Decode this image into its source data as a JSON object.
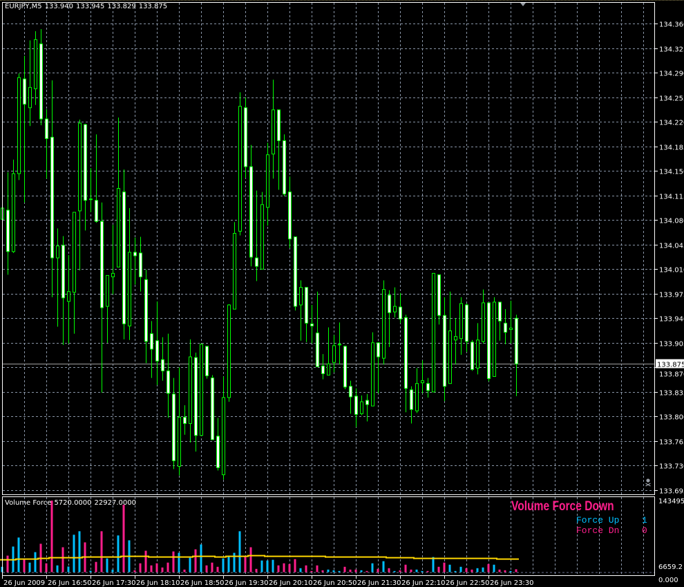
{
  "header": {
    "symbol": "EURJPY,M5",
    "open": "133.940",
    "high": "133.945",
    "low": "133.829",
    "close": "133.875"
  },
  "colors": {
    "background": "#000000",
    "grid": "#8a96a8",
    "candle_outline": "#00ff00",
    "bull_body": "#000000",
    "bear_body": "#ffffff",
    "force_up": "#00bfff",
    "force_down": "#ff1e8c",
    "average_line": "#ffd700",
    "frame": "#ffffff"
  },
  "price_axis": {
    "labels": [
      "134.360",
      "134.325",
      "134.290",
      "134.255",
      "134.220",
      "134.185",
      "134.150",
      "134.115",
      "134.080",
      "134.045",
      "134.010",
      "133.975",
      "133.940",
      "133.905",
      "133.870",
      "133.835",
      "133.800",
      "133.765",
      "133.730",
      "133.695"
    ],
    "current_price": "133.875"
  },
  "time_axis": {
    "labels": [
      "26 Jun 2009",
      "26 Jun 16:50",
      "26 Jun 17:30",
      "26 Jun 18:10",
      "26 Jun 18:50",
      "26 Jun 19:30",
      "26 Jun 20:10",
      "26 Jun 20:50",
      "26 Jun 21:30",
      "26 Jun 22:10",
      "26 Jun 22:50",
      "26 Jun 23:30"
    ]
  },
  "candles_ohlc": [
    [
      134.081,
      134.114,
      134.012,
      134.097
    ],
    [
      134.094,
      134.148,
      134.002,
      134.035
    ],
    [
      134.035,
      134.166,
      134.033,
      134.146
    ],
    [
      134.146,
      134.289,
      134.137,
      134.283
    ],
    [
      134.281,
      134.314,
      134.105,
      134.245
    ],
    [
      134.24,
      134.336,
      134.214,
      134.269
    ],
    [
      134.267,
      134.349,
      134.244,
      134.337
    ],
    [
      134.331,
      134.352,
      134.215,
      134.224
    ],
    [
      134.224,
      134.238,
      134.139,
      134.196
    ],
    [
      134.198,
      134.279,
      133.97,
      134.026
    ],
    [
      134.026,
      134.068,
      133.928,
      134.043
    ],
    [
      134.044,
      134.057,
      133.902,
      133.969
    ],
    [
      133.964,
      134.03,
      133.904,
      133.978
    ],
    [
      133.977,
      134.091,
      133.918,
      134.091
    ],
    [
      134.093,
      134.223,
      134.008,
      134.218
    ],
    [
      134.216,
      134.217,
      134.065,
      134.108
    ],
    [
      134.11,
      134.154,
      134.091,
      134.11
    ],
    [
      134.108,
      134.202,
      134.076,
      134.078
    ],
    [
      134.078,
      134.105,
      133.834,
      133.955
    ],
    [
      133.957,
      134.001,
      133.905,
      134.001
    ],
    [
      133.999,
      134.073,
      133.974,
      134.004
    ],
    [
      134.013,
      134.226,
      134.013,
      134.125
    ],
    [
      134.12,
      134.152,
      133.91,
      133.932
    ],
    [
      133.929,
      134.097,
      133.909,
      134.034
    ],
    [
      134.034,
      134.055,
      133.988,
      134.029
    ],
    [
      134.033,
      134.056,
      133.978,
      133.999
    ],
    [
      133.995,
      134.009,
      133.876,
      133.907
    ],
    [
      133.918,
      133.936,
      133.855,
      133.896
    ],
    [
      133.908,
      133.964,
      133.845,
      133.879
    ],
    [
      133.881,
      133.913,
      133.851,
      133.865
    ],
    [
      133.865,
      133.918,
      133.798,
      133.833
    ],
    [
      133.832,
      133.855,
      133.725,
      133.737
    ],
    [
      133.729,
      133.87,
      133.716,
      133.799
    ],
    [
      133.799,
      133.816,
      133.774,
      133.79
    ],
    [
      133.79,
      133.91,
      133.763,
      133.885
    ],
    [
      133.884,
      133.891,
      133.75,
      133.773
    ],
    [
      133.773,
      133.903,
      133.773,
      133.903
    ],
    [
      133.9,
      133.9,
      133.854,
      133.858
    ],
    [
      133.855,
      133.859,
      133.767,
      133.767
    ],
    [
      133.772,
      133.798,
      133.723,
      133.727
    ],
    [
      133.717,
      133.857,
      133.71,
      133.827
    ],
    [
      133.827,
      133.96,
      133.821,
      133.959
    ],
    [
      133.953,
      134.077,
      133.953,
      134.061
    ],
    [
      134.064,
      134.262,
      134.058,
      134.242
    ],
    [
      134.24,
      134.255,
      134.14,
      134.156
    ],
    [
      134.156,
      134.187,
      134.014,
      134.027
    ],
    [
      134.026,
      134.122,
      133.993,
      134.014
    ],
    [
      134.01,
      134.12,
      134.01,
      134.102
    ],
    [
      134.098,
      134.19,
      134.072,
      134.173
    ],
    [
      134.174,
      134.28,
      134.139,
      134.237
    ],
    [
      134.237,
      134.237,
      134.123,
      134.193
    ],
    [
      134.193,
      134.202,
      134.114,
      134.117
    ],
    [
      134.12,
      134.142,
      134.04,
      134.053
    ],
    [
      134.056,
      134.056,
      133.951,
      133.957
    ],
    [
      133.959,
      133.994,
      133.908,
      133.984
    ],
    [
      133.984,
      133.984,
      133.906,
      133.933
    ],
    [
      133.932,
      133.959,
      133.904,
      133.929
    ],
    [
      133.919,
      133.978,
      133.871,
      133.871
    ],
    [
      133.872,
      133.889,
      133.853,
      133.861
    ],
    [
      133.859,
      133.927,
      133.859,
      133.875
    ],
    [
      133.877,
      133.916,
      133.863,
      133.901
    ],
    [
      133.903,
      133.934,
      133.874,
      133.902
    ],
    [
      133.9,
      133.901,
      133.839,
      133.842
    ],
    [
      133.843,
      133.851,
      133.804,
      133.828
    ],
    [
      133.829,
      133.84,
      133.785,
      133.803
    ],
    [
      133.804,
      133.83,
      133.802,
      133.821
    ],
    [
      133.823,
      133.832,
      133.793,
      133.817
    ],
    [
      133.815,
      133.92,
      133.815,
      133.905
    ],
    [
      133.905,
      133.906,
      133.833,
      133.885
    ],
    [
      133.883,
      133.994,
      133.874,
      133.981
    ],
    [
      133.973,
      133.98,
      133.899,
      133.948
    ],
    [
      133.949,
      133.984,
      133.941,
      133.957
    ],
    [
      133.956,
      133.976,
      133.933,
      133.939
    ],
    [
      133.941,
      133.945,
      133.806,
      133.84
    ],
    [
      133.838,
      133.843,
      133.79,
      133.81
    ],
    [
      133.808,
      133.869,
      133.805,
      133.847
    ],
    [
      133.848,
      133.88,
      133.833,
      133.851
    ],
    [
      133.847,
      133.855,
      133.827,
      133.837
    ],
    [
      133.835,
      134.004,
      133.835,
      134.004
    ],
    [
      134.002,
      134.002,
      133.931,
      133.944
    ],
    [
      133.944,
      133.97,
      133.822,
      133.843
    ],
    [
      133.847,
      133.978,
      133.847,
      133.922
    ],
    [
      133.909,
      133.94,
      133.874,
      133.914
    ],
    [
      133.911,
      133.97,
      133.888,
      133.961
    ],
    [
      133.959,
      133.961,
      133.892,
      133.907
    ],
    [
      133.906,
      133.909,
      133.865,
      133.867
    ],
    [
      133.869,
      133.933,
      133.86,
      133.909
    ],
    [
      133.907,
      133.981,
      133.904,
      133.962
    ],
    [
      133.962,
      133.962,
      133.85,
      133.854
    ],
    [
      133.857,
      133.97,
      133.857,
      133.963
    ],
    [
      133.963,
      133.963,
      133.908,
      133.936
    ],
    [
      133.933,
      133.953,
      133.903,
      133.92
    ],
    [
      133.924,
      133.965,
      133.904,
      133.926
    ],
    [
      133.94,
      133.945,
      133.829,
      133.875
    ]
  ],
  "indicator": {
    "name": "Volume Force",
    "value1": "5720.0000",
    "value2": "22927.0000",
    "axis_max_label": "143495.2",
    "axis_min_label": "6659.2",
    "axis_min_label_overlap": "0.000",
    "max": 143495.2,
    "title": "Volume Force Down",
    "force_up_label": "Force Up",
    "force_up_value": "1",
    "force_dn_label": "Force Dn",
    "force_dn_value": "0",
    "directions": [
      "up",
      "down",
      "up",
      "up",
      "down",
      "up",
      "up",
      "down",
      "down",
      "down",
      "up",
      "down",
      "up",
      "up",
      "up",
      "down",
      "up",
      "down",
      "down",
      "up",
      "up",
      "up",
      "down",
      "up",
      "down",
      "down",
      "down",
      "down",
      "down",
      "down",
      "down",
      "down",
      "up",
      "down",
      "up",
      "down",
      "up",
      "down",
      "down",
      "down",
      "up",
      "up",
      "up",
      "up",
      "down",
      "down",
      "down",
      "up",
      "up",
      "up",
      "down",
      "down",
      "down",
      "down",
      "up",
      "down",
      "down",
      "down",
      "down",
      "up",
      "up",
      "up",
      "down",
      "down",
      "down",
      "up",
      "down",
      "up",
      "down",
      "up",
      "down",
      "up",
      "down",
      "down",
      "down",
      "up",
      "up",
      "down",
      "up",
      "down",
      "down",
      "up",
      "up",
      "up",
      "down",
      "down",
      "up",
      "up",
      "down",
      "up",
      "down",
      "down",
      "up",
      "down"
    ],
    "values": [
      10700,
      33100,
      51300,
      69400,
      26600,
      19100,
      40100,
      56900,
      17700,
      143495,
      13500,
      49900,
      11200,
      75000,
      82000,
      59700,
      2800,
      20500,
      82000,
      27500,
      5100,
      73600,
      135100,
      63800,
      3700,
      17700,
      42900,
      13500,
      17700,
      9300,
      19100,
      41500,
      38700,
      5100,
      28900,
      45700,
      55500,
      13500,
      19100,
      10700,
      27500,
      33100,
      38700,
      82000,
      31700,
      49900,
      6500,
      23300,
      23300,
      24700,
      13500,
      17700,
      16300,
      26100,
      7900,
      13500,
      2300,
      13500,
      3700,
      5100,
      3700,
      2300,
      10700,
      5100,
      5100,
      3700,
      2300,
      17700,
      6500,
      21900,
      7900,
      2300,
      3700,
      14900,
      5100,
      5100,
      2300,
      2300,
      30300,
      10700,
      19100,
      14900,
      2300,
      10700,
      7900,
      5100,
      7900,
      9300,
      16300,
      14900,
      5100,
      3700,
      2300,
      5720
    ],
    "average": [
      24700,
      24700,
      24700,
      26100,
      26100,
      26100,
      26100,
      27500,
      27500,
      28900,
      28900,
      28900,
      28900,
      28900,
      28900,
      30300,
      30300,
      30300,
      30300,
      30300,
      30300,
      30300,
      31700,
      31700,
      31700,
      31700,
      31700,
      30300,
      30300,
      30300,
      30300,
      30300,
      30300,
      30300,
      30300,
      31700,
      31700,
      31700,
      31700,
      30300,
      30300,
      31700,
      31700,
      31700,
      31700,
      33100,
      33100,
      33100,
      31700,
      31700,
      31700,
      31700,
      31700,
      31700,
      31700,
      31700,
      31700,
      31700,
      31700,
      30300,
      30300,
      30300,
      30300,
      30300,
      30300,
      30300,
      30300,
      30300,
      30300,
      30300,
      28900,
      28900,
      28900,
      28900,
      28900,
      27500,
      27500,
      27500,
      27500,
      27500,
      27500,
      27500,
      27500,
      27500,
      27500,
      27500,
      27500,
      27500,
      27500,
      27500,
      26100,
      26100,
      26100,
      26100
    ]
  },
  "icons": {
    "expert": "skull-crossbones-icon",
    "shift": "chart-shift-triangle-icon"
  }
}
